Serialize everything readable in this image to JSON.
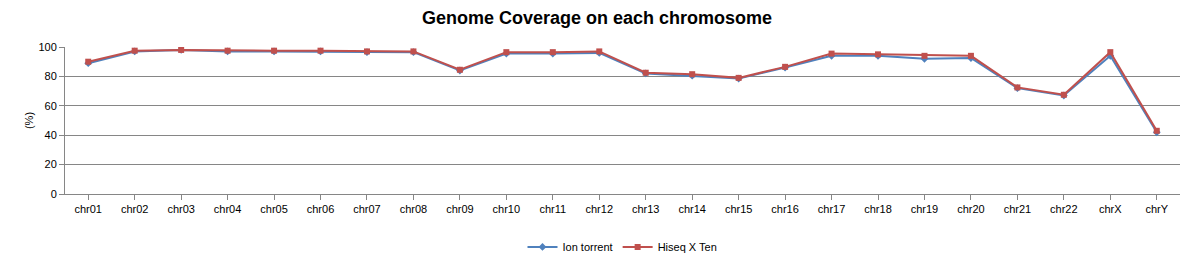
{
  "chart_data": {
    "type": "line",
    "title": "Genome Coverage on each chromosome",
    "y_label": "(%)",
    "categories": [
      "chr01",
      "chr02",
      "chr03",
      "chr04",
      "chr05",
      "chr06",
      "chr07",
      "chr08",
      "chr09",
      "chr10",
      "chr11",
      "chr12",
      "chr13",
      "chr14",
      "chr15",
      "chr16",
      "chr17",
      "chr18",
      "chr19",
      "chr20",
      "chr21",
      "chr22",
      "chrX",
      "chrY"
    ],
    "series": [
      {
        "name": "Ion torrent",
        "color": "#4f81bd",
        "marker": "diamond",
        "line_style": "solid",
        "values": [
          89,
          97,
          98,
          97,
          97,
          97,
          96.5,
          96.5,
          84,
          95.5,
          95.5,
          96,
          82,
          80.5,
          78.5,
          86,
          94,
          94,
          92,
          92.5,
          72,
          67,
          94,
          42
        ]
      },
      {
        "name": "Hiseq X Ten",
        "color": "#c0504d",
        "marker": "square",
        "line_style": "solid",
        "values": [
          90,
          97.5,
          98,
          97.5,
          97.5,
          97.5,
          97,
          97,
          84.5,
          96.5,
          96.5,
          97,
          82.5,
          81.5,
          79,
          86.5,
          95.5,
          95,
          94,
          94,
          72.5,
          67.5,
          96.5,
          43
        ]
      }
    ],
    "ylim": [
      0,
      100
    ],
    "yticks": [
      0,
      20,
      40,
      60,
      80,
      100
    ],
    "grid": true,
    "legend": "bottom"
  }
}
